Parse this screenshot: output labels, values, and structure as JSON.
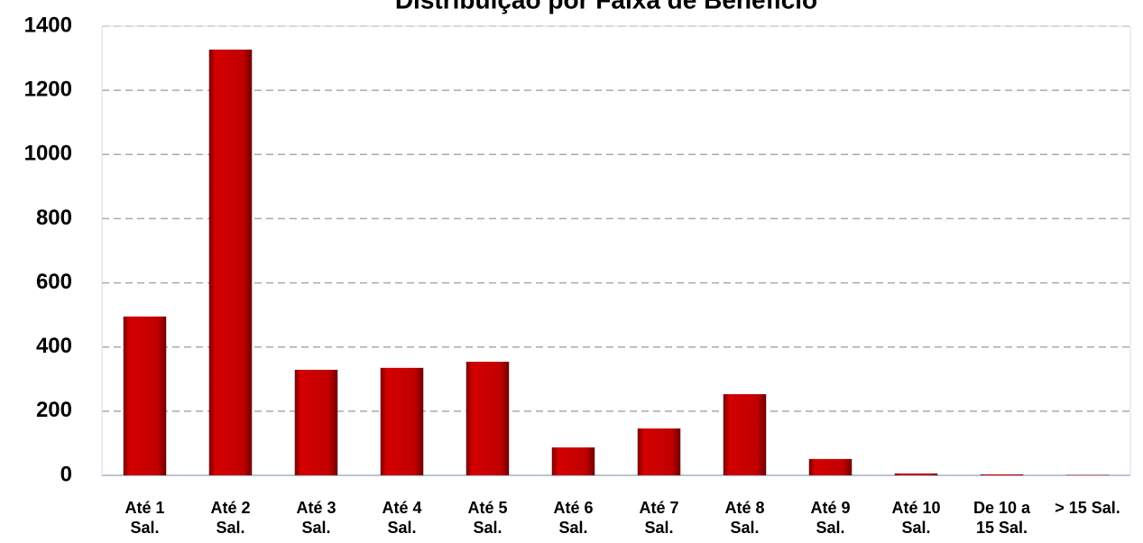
{
  "chart_data": {
    "type": "bar",
    "title": "Distribuição por Faixa de Benefício",
    "categories": [
      "Até 1\nSal.",
      "Até 2\nSal.",
      "Até 3\nSal.",
      "Até 4\nSal.",
      "Até 5\nSal.",
      "Até 6\nSal.",
      "Até 7\nSal.",
      "Até 8\nSal.",
      "Até 9\nSal.",
      "Até 10\nSal.",
      "De 10 a\n15 Sal.",
      "> 15 Sal."
    ],
    "values": [
      495,
      1327,
      329,
      335,
      354,
      87,
      146,
      253,
      51,
      6,
      3,
      1
    ],
    "color": "#c00000",
    "ylim": [
      0,
      1400
    ],
    "yticks": [
      0,
      200,
      400,
      600,
      800,
      1000,
      1200,
      1400
    ],
    "grid": true
  }
}
